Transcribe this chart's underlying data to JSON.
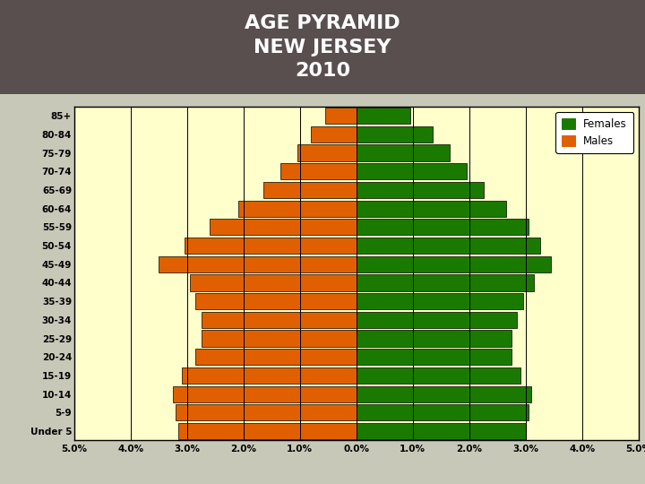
{
  "title": "AGE PYRAMID\nNEW JERSEY\n2010",
  "title_bg_color": "#5a4f4f",
  "title_text_color": "#ffffff",
  "plot_bg_color": "#ffffcc",
  "outer_bg_color": "#c8c8b8",
  "age_groups": [
    "Under 5",
    "5-9",
    "10-14",
    "15-19",
    "20-24",
    "25-29",
    "30-34",
    "35-39",
    "40-44",
    "45-49",
    "50-54",
    "55-59",
    "60-64",
    "65-69",
    "70-74",
    "75-79",
    "80-84",
    "85+"
  ],
  "males": [
    3.15,
    3.2,
    3.25,
    3.1,
    2.85,
    2.75,
    2.75,
    2.85,
    2.95,
    3.5,
    3.05,
    2.6,
    2.1,
    1.65,
    1.35,
    1.05,
    0.8,
    0.55
  ],
  "females": [
    3.0,
    3.05,
    3.1,
    2.9,
    2.75,
    2.75,
    2.85,
    2.95,
    3.15,
    3.45,
    3.25,
    3.05,
    2.65,
    2.25,
    1.95,
    1.65,
    1.35,
    0.95
  ],
  "male_color": "#e06000",
  "female_color": "#1a7a00",
  "xlim": 5.0,
  "grid_color": "#000000",
  "bar_edge_color": "#000000",
  "legend_females": "Females",
  "legend_males": "Males"
}
